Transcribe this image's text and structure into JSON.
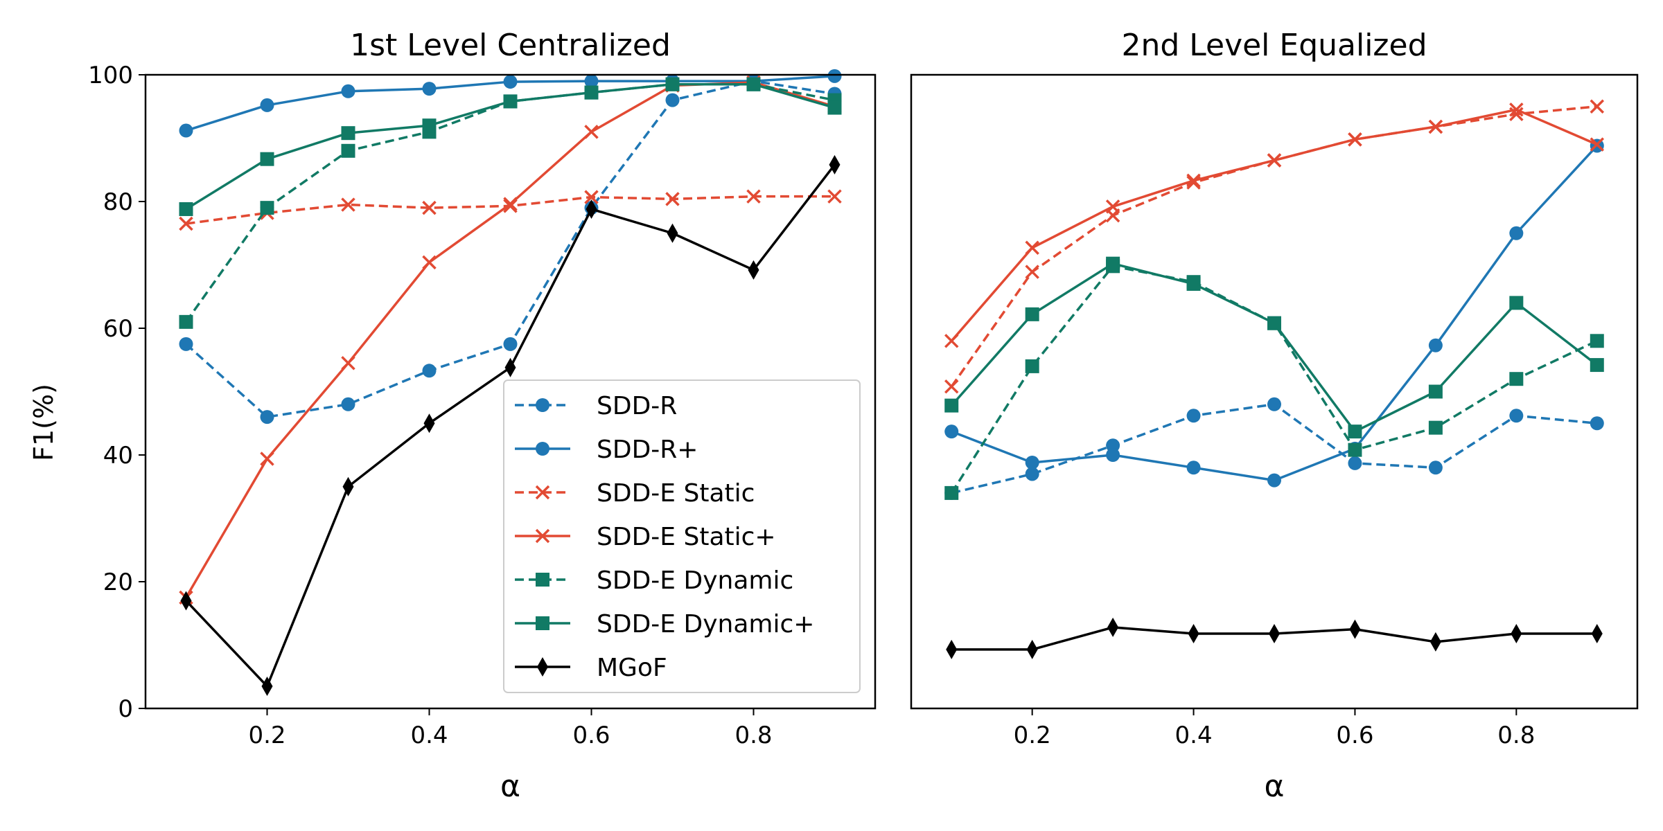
{
  "chart_data": {
    "type": "line",
    "ylabel": "F1(%)",
    "ylim": [
      0,
      100
    ],
    "yticks": [
      "0",
      "20",
      "40",
      "60",
      "80",
      "100"
    ],
    "xlim": [
      0.05,
      0.95
    ],
    "xticks": [
      "0.2",
      "0.4",
      "0.6",
      "0.8"
    ],
    "legend_placement": "lower-right of left panel",
    "series_styles": [
      {
        "name": "SDD-R",
        "color": "#1f77b4",
        "dashed": true,
        "marker": "circle"
      },
      {
        "name": "SDD-R+",
        "color": "#1f77b4",
        "dashed": false,
        "marker": "circle"
      },
      {
        "name": "SDD-E Static",
        "color": "#e24a33",
        "dashed": true,
        "marker": "x"
      },
      {
        "name": "SDD-E Static+",
        "color": "#e24a33",
        "dashed": false,
        "marker": "x"
      },
      {
        "name": "SDD-E Dynamic",
        "color": "#117a65",
        "dashed": true,
        "marker": "square"
      },
      {
        "name": "SDD-E Dynamic+",
        "color": "#117a65",
        "dashed": false,
        "marker": "square"
      },
      {
        "name": "MGoF",
        "color": "#000000",
        "dashed": false,
        "marker": "diamond"
      }
    ],
    "panels": [
      {
        "title": "1st Level Centralized",
        "xlabel": "α",
        "x": [
          0.1,
          0.2,
          0.3,
          0.4,
          0.5,
          0.6,
          0.7,
          0.8,
          0.9
        ],
        "series": [
          {
            "name": "SDD-R",
            "values": [
              57.5,
              46,
              48,
              53.3,
              57.5,
              79,
              96,
              99,
              97
            ]
          },
          {
            "name": "SDD-R+",
            "values": [
              91.2,
              95.2,
              97.4,
              97.8,
              98.9,
              99,
              99,
              99,
              99.8
            ]
          },
          {
            "name": "SDD-E Static",
            "values": [
              76.5,
              78.2,
              79.5,
              79,
              79.3,
              80.7,
              80.4,
              80.8,
              80.8
            ]
          },
          {
            "name": "SDD-E Static+",
            "values": [
              17.5,
              39.4,
              54.5,
              70.4,
              79.6,
              91,
              98.3,
              98.8,
              95
            ]
          },
          {
            "name": "SDD-E Dynamic",
            "values": [
              61,
              79,
              88,
              91,
              95.8,
              97.2,
              98.5,
              98.5,
              96
            ]
          },
          {
            "name": "SDD-E Dynamic+",
            "values": [
              78.8,
              86.7,
              90.8,
              92,
              95.8,
              97.2,
              98.5,
              98.5,
              94.8
            ]
          },
          {
            "name": "MGoF",
            "values": [
              17,
              3.5,
              35,
              45,
              53.8,
              78.8,
              75,
              69.2,
              85.8
            ]
          }
        ]
      },
      {
        "title": "2nd Level Equalized",
        "xlabel": "α",
        "x": [
          0.1,
          0.2,
          0.3,
          0.4,
          0.5,
          0.6,
          0.7,
          0.8,
          0.9
        ],
        "series": [
          {
            "name": "SDD-R",
            "values": [
              34,
              37,
              41.5,
              46.2,
              48,
              38.7,
              38,
              46.2,
              45
            ]
          },
          {
            "name": "SDD-R+",
            "values": [
              43.7,
              38.8,
              40,
              38,
              36,
              41,
              57.3,
              75,
              88.8
            ]
          },
          {
            "name": "SDD-E Static",
            "values": [
              50.8,
              68.9,
              77.8,
              83,
              86.5,
              89.8,
              91.8,
              93.8,
              95
            ]
          },
          {
            "name": "SDD-E Static+",
            "values": [
              58,
              72.7,
              79.2,
              83.3,
              86.5,
              89.8,
              91.8,
              94.5,
              89
            ]
          },
          {
            "name": "SDD-E Dynamic",
            "values": [
              34,
              54,
              69.8,
              67.3,
              60.8,
              40.8,
              44.3,
              52,
              58
            ]
          },
          {
            "name": "SDD-E Dynamic+",
            "values": [
              47.8,
              62.2,
              70.2,
              67,
              60.8,
              43.7,
              50,
              64,
              54.2
            ]
          },
          {
            "name": "MGoF",
            "values": [
              9.3,
              9.3,
              12.8,
              11.8,
              11.8,
              12.5,
              10.5,
              11.8,
              11.8
            ]
          }
        ]
      }
    ]
  }
}
